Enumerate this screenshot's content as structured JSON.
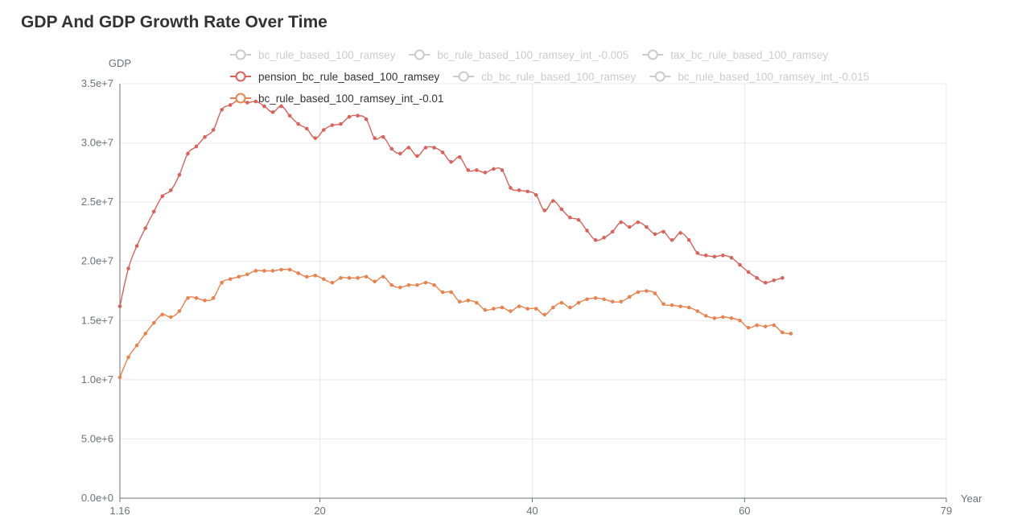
{
  "chart_data": {
    "type": "line",
    "title": "GDP And GDP Growth Rate Over Time",
    "xlabel": "Year",
    "ylabel": "GDP",
    "xlim": [
      1.16,
      79
    ],
    "ylim": [
      0,
      35000000
    ],
    "x_ticks": [
      "1.16",
      "20",
      "40",
      "60",
      "79"
    ],
    "y_ticks": [
      "0.0e+0",
      "5.0e+6",
      "1.0e+7",
      "1.5e+7",
      "2.0e+7",
      "2.5e+7",
      "3.0e+7",
      "3.5e+7"
    ],
    "grid": true,
    "legend_position": "top",
    "legend": [
      {
        "name": "bc_rule_based_100_ramsey",
        "active": false,
        "color": "#cccccc"
      },
      {
        "name": "bc_rule_based_100_ramsey_int_-0.005",
        "active": false,
        "color": "#cccccc"
      },
      {
        "name": "tax_bc_rule_based_100_ramsey",
        "active": false,
        "color": "#cccccc"
      },
      {
        "name": "pension_bc_rule_based_100_ramsey",
        "active": true,
        "color": "#d9625b"
      },
      {
        "name": "cb_bc_rule_based_100_ramsey",
        "active": false,
        "color": "#cccccc"
      },
      {
        "name": "bc_rule_based_100_ramsey_int_-0.015",
        "active": false,
        "color": "#cccccc"
      },
      {
        "name": "bc_rule_based_100_ramsey_int_-0.01",
        "active": true,
        "color": "#e8834f"
      }
    ],
    "series": [
      {
        "name": "pension_bc_rule_based_100_ramsey",
        "color": "#d9625b",
        "x_start": 1.16,
        "x_step": 0.8,
        "values": [
          16.2,
          19.4,
          21.3,
          22.8,
          24.2,
          25.5,
          26.0,
          27.3,
          29.1,
          29.7,
          30.5,
          31.1,
          32.8,
          33.2,
          33.6,
          33.4,
          33.5,
          33.1,
          32.6,
          33.1,
          32.3,
          31.6,
          31.2,
          30.4,
          31.1,
          31.5,
          31.6,
          32.2,
          32.3,
          32.0,
          30.4,
          30.5,
          29.5,
          29.1,
          29.6,
          28.9,
          29.6,
          29.6,
          29.2,
          28.4,
          28.8,
          27.7,
          27.7,
          27.5,
          27.8,
          27.7,
          26.2,
          26.0,
          25.9,
          25.6,
          24.3,
          25.1,
          24.4,
          23.7,
          23.5,
          22.6,
          21.8,
          22.0,
          22.5,
          23.3,
          22.9,
          23.3,
          22.9,
          22.3,
          22.5,
          21.8,
          22.4,
          21.8,
          20.7,
          20.5,
          20.4,
          20.5,
          20.3,
          19.7,
          19.1,
          18.6,
          18.2,
          18.4,
          18.6
        ]
      },
      {
        "name": "bc_rule_based_100_ramsey_int_-0.01",
        "color": "#e8834f",
        "x_start": 1.16,
        "x_step": 0.8,
        "values": [
          10.2,
          11.9,
          12.9,
          13.9,
          14.8,
          15.5,
          15.3,
          15.8,
          16.9,
          16.9,
          16.7,
          16.9,
          18.2,
          18.5,
          18.7,
          18.9,
          19.2,
          19.2,
          19.2,
          19.3,
          19.3,
          19.0,
          18.7,
          18.8,
          18.5,
          18.2,
          18.6,
          18.6,
          18.6,
          18.7,
          18.3,
          18.7,
          18.0,
          17.8,
          18.0,
          18.0,
          18.2,
          18.0,
          17.4,
          17.4,
          16.6,
          16.7,
          16.5,
          15.9,
          16.0,
          16.1,
          15.8,
          16.2,
          16.0,
          16.0,
          15.5,
          16.1,
          16.5,
          16.1,
          16.5,
          16.8,
          16.9,
          16.8,
          16.6,
          16.6,
          17.0,
          17.4,
          17.5,
          17.3,
          16.4,
          16.3,
          16.2,
          16.1,
          15.8,
          15.4,
          15.2,
          15.3,
          15.2,
          15.0,
          14.4,
          14.6,
          14.5,
          14.6,
          14.0,
          13.9
        ]
      }
    ]
  }
}
